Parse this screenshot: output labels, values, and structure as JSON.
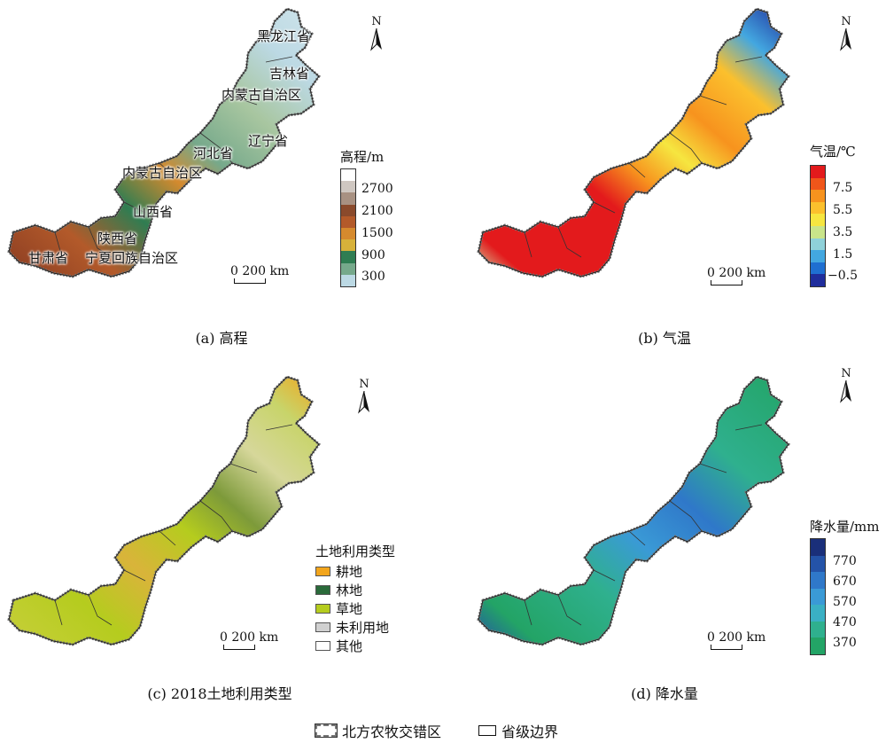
{
  "panels": {
    "a": {
      "caption": "(a) 高程",
      "legend_title": "高程/m",
      "ramp_labels": [
        "2700",
        "2100",
        "1500",
        "900",
        "300"
      ],
      "ramp_colors": [
        "#ffffff",
        "#cfc7c1",
        "#a89182",
        "#8a4a2c",
        "#b35a2a",
        "#d58a2e",
        "#d7b13a",
        "#2f7d52",
        "#76a98b",
        "#bcd9e4"
      ],
      "provinces": [
        "黑龙江省",
        "吉林省",
        "内蒙古自治区",
        "辽宁省",
        "河北省",
        "内蒙古自治区",
        "山西省",
        "陕西省",
        "甘肃省",
        "宁夏回族自治区"
      ]
    },
    "b": {
      "caption": "(b) 气温",
      "legend_title": "气温/℃",
      "ramp_labels": [
        "7.5",
        "5.5",
        "3.5",
        "1.5",
        "−0.5"
      ],
      "ramp_colors": [
        "#e31a1c",
        "#f0561a",
        "#f7931e",
        "#fbc02d",
        "#f6e640",
        "#c9e58a",
        "#8fd1d9",
        "#43a7e0",
        "#1f6fd1",
        "#1f2d9c"
      ]
    },
    "c": {
      "caption": "(c) 2018土地利用类型",
      "legend_title": "土地利用类型",
      "categories": [
        {
          "label": "耕地",
          "color": "#f2a51c"
        },
        {
          "label": "林地",
          "color": "#2a6a3a"
        },
        {
          "label": "草地",
          "color": "#b5cc1e"
        },
        {
          "label": "未利用地",
          "color": "#d0d0d0"
        },
        {
          "label": "其他",
          "color": "#ffffff"
        }
      ]
    },
    "d": {
      "caption": "(d) 降水量",
      "legend_title": "降水量/mm",
      "ramp_labels": [
        "770",
        "670",
        "570",
        "470",
        "370"
      ],
      "ramp_colors": [
        "#1a2f7a",
        "#2453a8",
        "#2f78c9",
        "#3a9ad6",
        "#3ab0c4",
        "#2fb08e",
        "#23a466"
      ]
    }
  },
  "scale_text": "0   200 km",
  "north_label": "N",
  "legend": {
    "zone": "北方农牧交错区",
    "province": "省级边界"
  }
}
